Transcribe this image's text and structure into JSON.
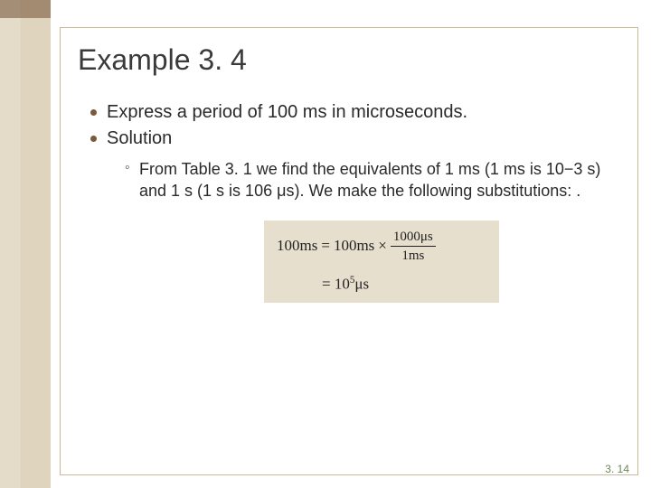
{
  "title": "Example 3. 4",
  "bullets": {
    "item1": "Express a period of 100 ms in microseconds.",
    "item2": "Solution",
    "sub1": "From Table 3. 1 we find the equivalents of 1 ms (1 ms is 10−3 s) and 1 s (1 s is 106 μs). We make the following substitutions: ."
  },
  "equation": {
    "lhs": "100ms",
    "eq": "=",
    "mid": "100ms",
    "times": "×",
    "frac_num": "1000μs",
    "frac_den": "1ms",
    "row2_eq": "=",
    "row2_val_pre": "10",
    "row2_val_sup": "5",
    "row2_unit": "μs"
  },
  "equation_box": {
    "background_color": "#e7dfce",
    "text_color": "#222222"
  },
  "page_number": "3. 14",
  "colors": {
    "sidebar_light": "#e4dbc9",
    "sidebar_dark": "#dfd4bd",
    "sidebar_top": "#7a5a3e",
    "border": "#c9b998",
    "bullet": "#7a5a3e",
    "page_num": "#6a8a5a"
  }
}
